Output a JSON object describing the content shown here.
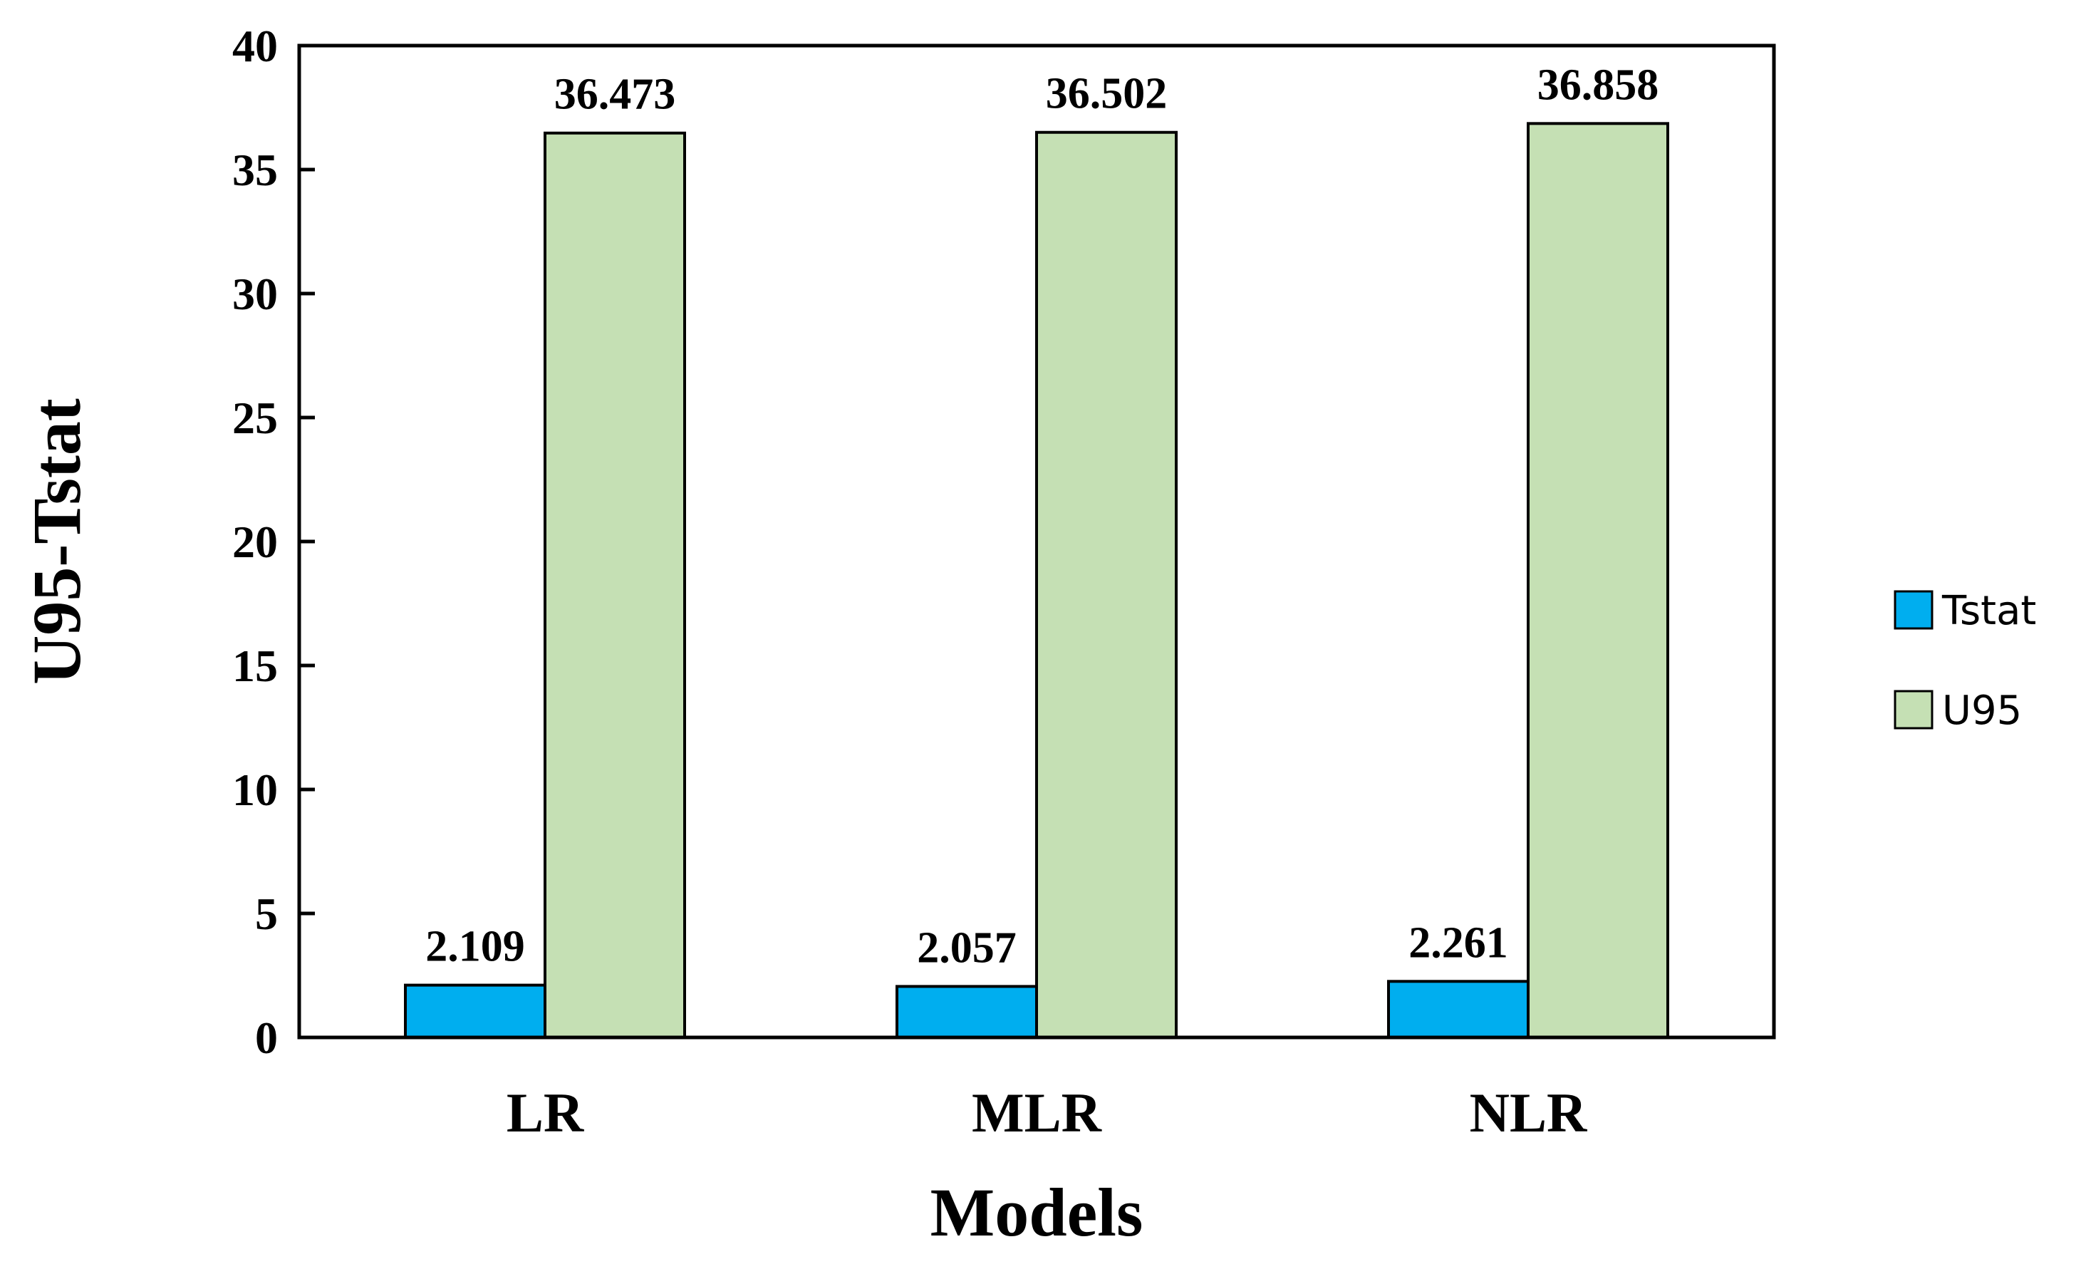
{
  "chart_data": {
    "type": "bar",
    "categories": [
      "LR",
      "MLR",
      "NLR"
    ],
    "series": [
      {
        "name": "Tstat",
        "values": [
          2.109,
          2.057,
          2.261
        ],
        "color": "#00aeef",
        "labels": [
          "2.109",
          "2.057",
          "2.261"
        ]
      },
      {
        "name": "U95",
        "values": [
          36.473,
          36.502,
          36.858
        ],
        "color": "#c5e0b4",
        "labels": [
          "36.473",
          "36.502",
          "36.858"
        ]
      }
    ],
    "xlabel": "Models",
    "ylabel": "U95-Tstat",
    "ylim": [
      0,
      40
    ],
    "yticks": [
      0,
      5,
      10,
      15,
      20,
      25,
      30,
      35,
      40
    ],
    "grid": false,
    "legend_position": "right"
  }
}
